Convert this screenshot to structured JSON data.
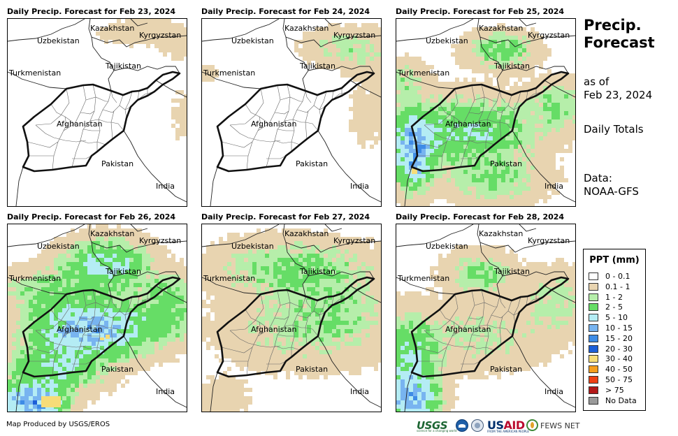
{
  "panels": [
    {
      "title": "Daily Precip. Forecast for Feb 23, 2024",
      "level": 0
    },
    {
      "title": "Daily Precip. Forecast for Feb 24, 2024",
      "level": 1
    },
    {
      "title": "Daily Precip. Forecast for Feb 25, 2024",
      "level": 2
    },
    {
      "title": "Daily Precip. Forecast for Feb 26, 2024",
      "level": 3
    },
    {
      "title": "Daily Precip. Forecast for Feb 27, 2024",
      "level": 4
    },
    {
      "title": "Daily Precip. Forecast for Feb 28, 2024",
      "level": 5
    }
  ],
  "map_labels": {
    "kazakhstan": "Kazakhstan",
    "kyrgyzstan": "Kyrgyzstan",
    "uzbekistan": "Uzbekistan",
    "turkmenistan": "Turkmenistan",
    "tajikistan": "Tajikistan",
    "afghanistan": "Afghanistan",
    "pakistan": "Pakistan",
    "india": "India"
  },
  "side": {
    "title_line1": "Precip.",
    "title_line2": "Forecast",
    "asof_label": "as of",
    "asof_date": "Feb 23, 2024",
    "totals": "Daily Totals",
    "data_label": "Data:",
    "data_source": "NOAA-GFS"
  },
  "legend": {
    "title": "PPT (mm)",
    "items": [
      {
        "label": "0 - 0.1",
        "color": "#ffffff"
      },
      {
        "label": "0.1 - 1",
        "color": "#e8d4b0"
      },
      {
        "label": "1 - 2",
        "color": "#b6eeaa"
      },
      {
        "label": "2 - 5",
        "color": "#66dd66"
      },
      {
        "label": "5 - 10",
        "color": "#b4ecf4"
      },
      {
        "label": "10 - 15",
        "color": "#78b4f0"
      },
      {
        "label": "15 - 20",
        "color": "#3e8ce6"
      },
      {
        "label": "20 - 30",
        "color": "#1c5fd8"
      },
      {
        "label": "30 - 40",
        "color": "#f6dc78"
      },
      {
        "label": "40 - 50",
        "color": "#f59e1e"
      },
      {
        "label": "50 - 75",
        "color": "#ee4014"
      },
      {
        "label": "> 75",
        "color": "#b21818"
      },
      {
        "label": "No Data",
        "color": "#9a9a9a"
      }
    ]
  },
  "footer": {
    "credit": "Map Produced by USGS/EROS",
    "usgs": "USGS",
    "usgs_tagline": "science for a changing world",
    "usaid_a": "US",
    "usaid_b": "AID",
    "usaid_tagline": "FROM THE AMERICAN PEOPLE",
    "fews": "FEWS NET"
  }
}
